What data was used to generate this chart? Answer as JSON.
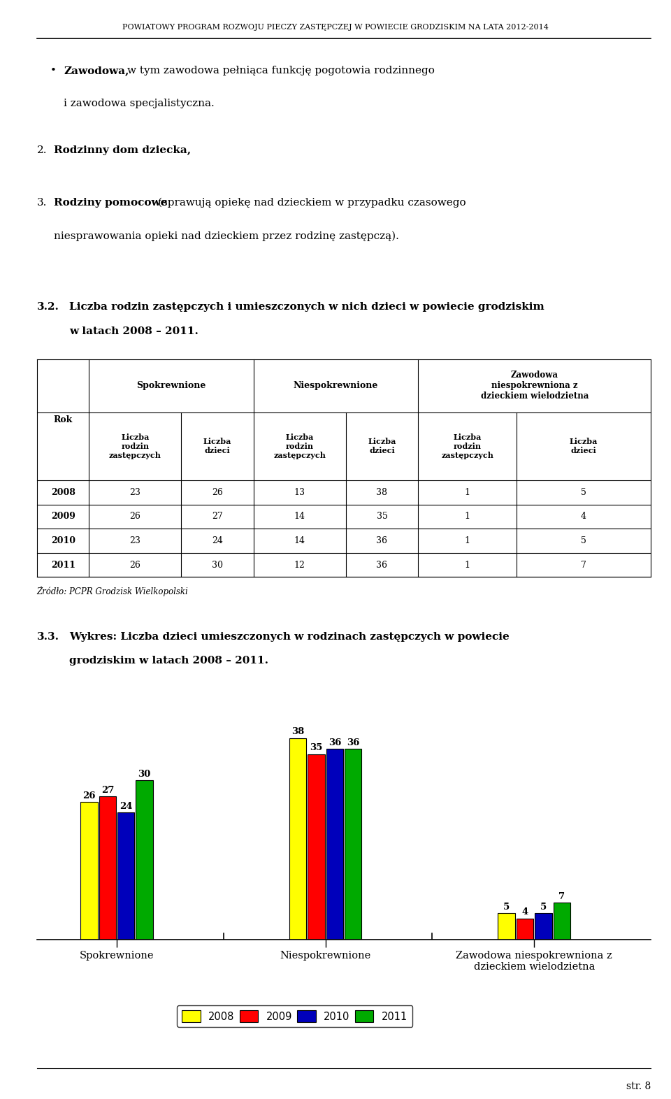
{
  "title_header": "POWIATOWY PROGRAM ROZWOJU PIECZY ZASTĘPCZEJ W POWIECIE GRODZISKIM NA LATA 2012-2014",
  "source": "Źródło: PCPR Grodzisk Wielkopolski",
  "categories": [
    "Spokrewnione",
    "Niespokrewnione",
    "Zawodowa niespokrewniona z\ndzieckiem wielodzietna"
  ],
  "years": [
    "2008",
    "2009",
    "2010",
    "2011"
  ],
  "values": {
    "Spokrewnione": [
      26,
      27,
      24,
      30
    ],
    "Niespokrewnione": [
      38,
      35,
      36,
      36
    ],
    "Zawodowa niespokrewniona z\ndzieckiem wielodzietna": [
      5,
      4,
      5,
      7
    ]
  },
  "colors": [
    "#FFFF00",
    "#FF0000",
    "#0000BB",
    "#00AA00"
  ],
  "background_color": "#FFFFFF",
  "table_rows": [
    [
      "2008",
      "23",
      "26",
      "13",
      "38",
      "1",
      "5"
    ],
    [
      "2009",
      "26",
      "27",
      "14",
      "35",
      "1",
      "4"
    ],
    [
      "2010",
      "23",
      "24",
      "14",
      "36",
      "1",
      "5"
    ],
    [
      "2011",
      "26",
      "30",
      "12",
      "36",
      "1",
      "7"
    ]
  ],
  "footer_text": "str. 8"
}
